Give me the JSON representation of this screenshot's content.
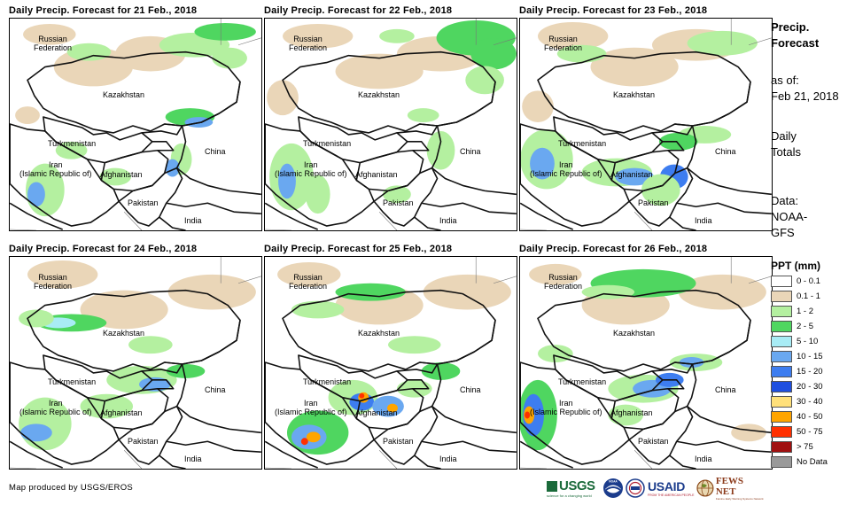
{
  "panels": [
    {
      "title": "Daily Precip. Forecast for 21 Feb., 2018"
    },
    {
      "title": "Daily Precip. Forecast for 22 Feb., 2018"
    },
    {
      "title": "Daily Precip. Forecast for 23 Feb., 2018"
    },
    {
      "title": "Daily Precip. Forecast for 24 Feb., 2018"
    },
    {
      "title": "Daily Precip. Forecast for 25 Feb., 2018"
    },
    {
      "title": "Daily Precip. Forecast for 26 Feb., 2018"
    }
  ],
  "map_labels": {
    "russia": "Russian\nFederation",
    "kazakhstan": "Kazakhstan",
    "turkmenistan": "Turkmenistan",
    "iran": "Iran\n(Islamic Republic of)",
    "afghanistan": "Afghanistan",
    "pakistan": "Pakistan",
    "china": "China",
    "india": "India"
  },
  "sidebar": {
    "title_line1": "Precip.",
    "title_line2": "Forecast",
    "asof_line1": "as of:",
    "asof_line2": "Feb 21, 2018",
    "totals_line1": "Daily",
    "totals_line2": "Totals",
    "data_line1": "Data:",
    "data_line2": "NOAA-",
    "data_line3": "GFS"
  },
  "legend": {
    "title": "PPT (mm)",
    "items": [
      {
        "label": "0 - 0.1",
        "color": "#ffffff"
      },
      {
        "label": "0.1 - 1",
        "color": "#ead6b8"
      },
      {
        "label": "1 - 2",
        "color": "#b4f0a0"
      },
      {
        "label": "2 - 5",
        "color": "#4fd660"
      },
      {
        "label": "5 - 10",
        "color": "#a8ecf5"
      },
      {
        "label": "10 - 15",
        "color": "#6aa8f0"
      },
      {
        "label": "15 - 20",
        "color": "#3d7df0"
      },
      {
        "label": "20 - 30",
        "color": "#1f4fe0"
      },
      {
        "label": "30 - 40",
        "color": "#ffe07a"
      },
      {
        "label": "40 - 50",
        "color": "#ffa500"
      },
      {
        "label": "50 - 75",
        "color": "#ff3000"
      },
      {
        "label": "> 75",
        "color": "#a01010"
      },
      {
        "label": "No Data",
        "color": "#9a9a9a"
      }
    ]
  },
  "credit": "Map produced by USGS/EROS",
  "logos": {
    "usgs": "USGS",
    "usgs_tag": "science for a changing world",
    "noaa": "NOAA",
    "usaid": "USAID",
    "usaid_tag": "FROM THE AMERICAN PEOPLE",
    "fews": "FEWS NET",
    "fews_tag": "Famine Early Warning Systems Network"
  }
}
